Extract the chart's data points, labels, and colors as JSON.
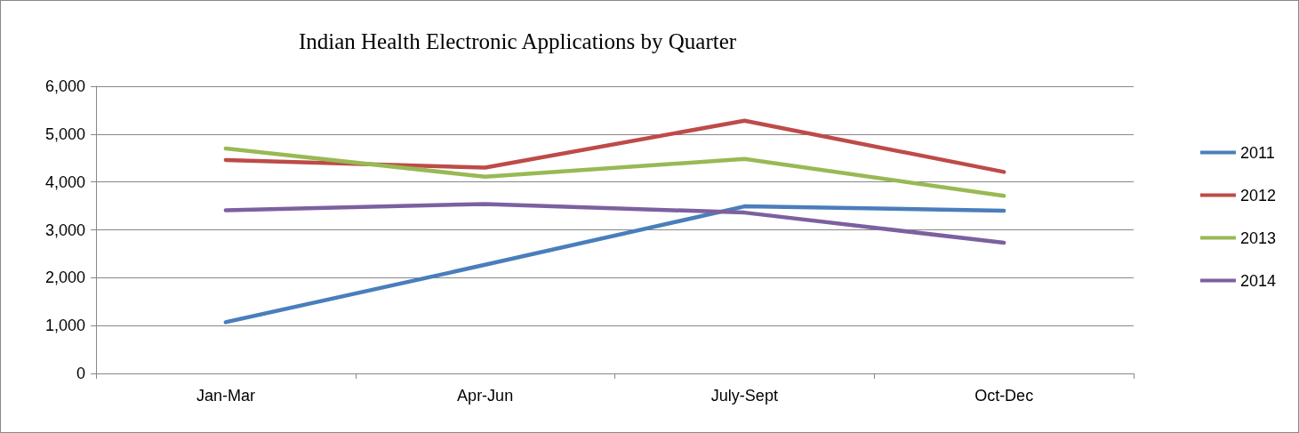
{
  "chart_data": {
    "type": "line",
    "title": "Indian Health Electronic Applications by Quarter",
    "categories": [
      "Jan-Mar",
      "Apr-Jun",
      "July-Sept",
      "Oct-Dec"
    ],
    "series": [
      {
        "name": "2011",
        "color": "#4a7ebb",
        "values": [
          1070,
          2270,
          3490,
          3400
        ]
      },
      {
        "name": "2012",
        "color": "#be4b48",
        "values": [
          4460,
          4300,
          5280,
          4210
        ]
      },
      {
        "name": "2013",
        "color": "#98b954",
        "values": [
          4700,
          4110,
          4480,
          3710
        ]
      },
      {
        "name": "2014",
        "color": "#7d60a0",
        "values": [
          3410,
          3540,
          3360,
          2730
        ]
      }
    ],
    "ylim": [
      0,
      6000
    ],
    "yticks": [
      0,
      {
        "value": 1000,
        "label": "1,000"
      },
      {
        "value": 2000,
        "label": "2,000"
      },
      {
        "value": 3000,
        "label": "3,000"
      },
      {
        "value": 4000,
        "label": "4,000"
      },
      {
        "value": 5000,
        "label": "5,000"
      },
      {
        "value": 6000,
        "label": "6,000"
      }
    ],
    "grid": "y",
    "legend": "right",
    "marker": "none",
    "line_style": "solid"
  }
}
